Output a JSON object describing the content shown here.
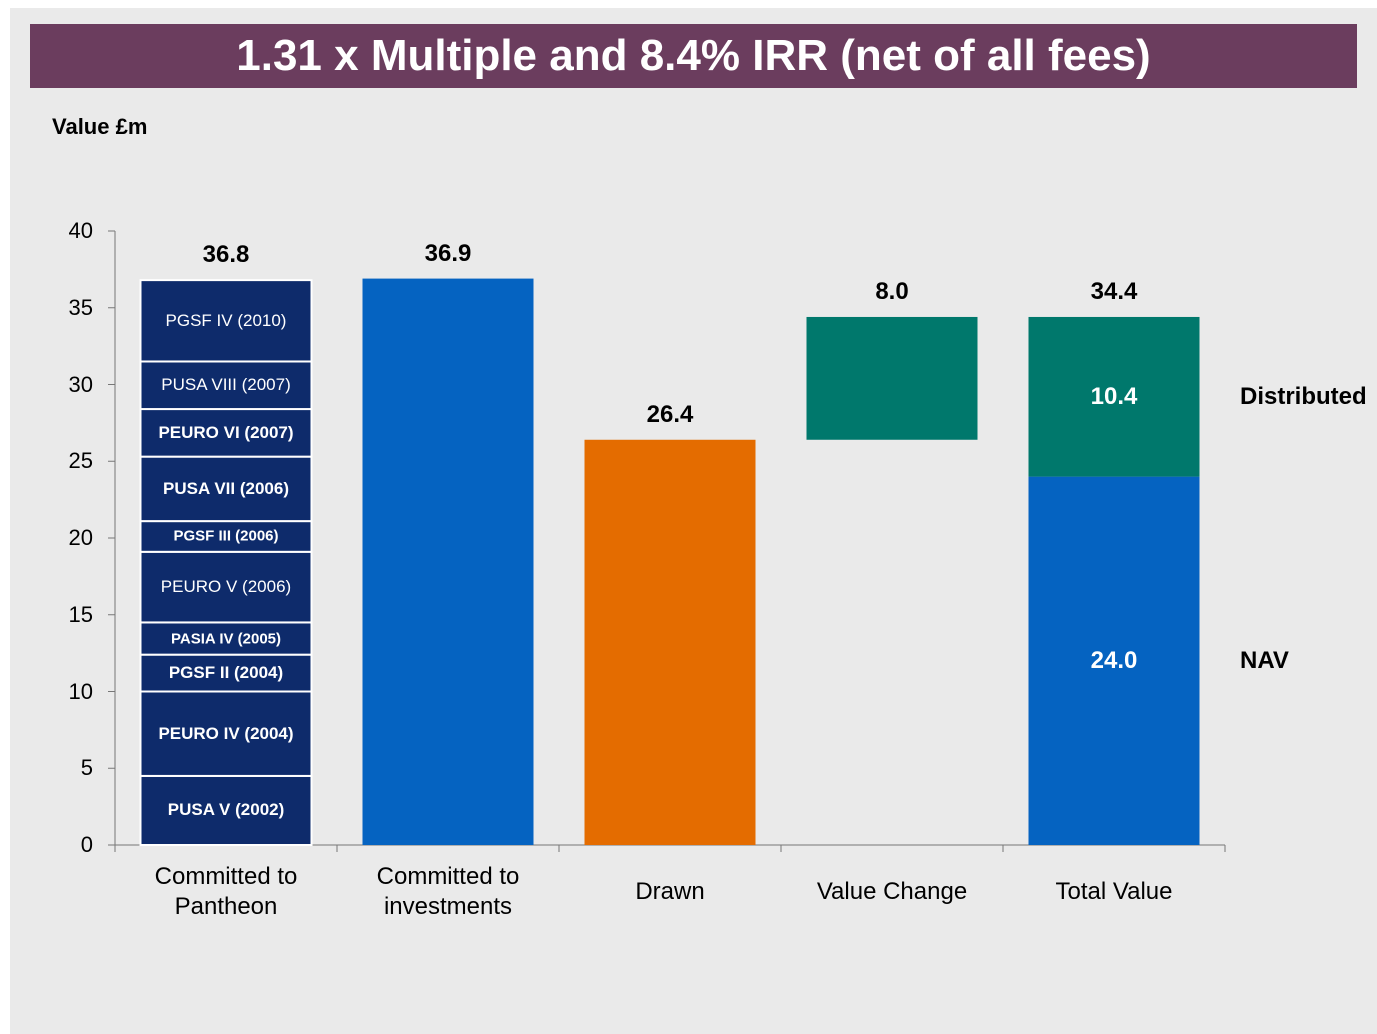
{
  "chart_data": {
    "type": "waterfall",
    "title": "1.31 x Multiple and 8.4% IRR (net of all fees)",
    "y_label": "Value £m",
    "ylim": [
      0,
      40
    ],
    "yticks": [
      0,
      5,
      10,
      15,
      20,
      25,
      30,
      35,
      40
    ],
    "categories": [
      "Committed to Pantheon",
      "Committed to investments",
      "Drawn",
      "Value Change",
      "Total Value"
    ],
    "bars": [
      {
        "names": "inside",
        "total": 36.8,
        "segments": [
          {
            "name": "PUSA V (2002)",
            "value": 4.5,
            "color": "#0e2b6b",
            "bold": true
          },
          {
            "name": "PEURO IV (2004)",
            "value": 5.5,
            "color": "#0e2b6b",
            "bold": true
          },
          {
            "name": "PGSF II (2004)",
            "value": 2.4,
            "color": "#0e2b6b",
            "bold": true
          },
          {
            "name": "PASIA IV (2005)",
            "value": 2.1,
            "color": "#0e2b6b",
            "bold": true
          },
          {
            "name": "PEURO V (2006)",
            "value": 4.6,
            "color": "#0e2b6b",
            "bold": false
          },
          {
            "name": "PGSF III (2006)",
            "value": 2.0,
            "color": "#0e2b6b",
            "bold": true
          },
          {
            "name": "PUSA VII (2006)",
            "value": 4.2,
            "color": "#0e2b6b",
            "bold": true
          },
          {
            "name": "PEURO VI (2007)",
            "value": 3.1,
            "color": "#0e2b6b",
            "bold": true
          },
          {
            "name": "PUSA VIII (2007)",
            "value": 3.1,
            "color": "#0e2b6b",
            "bold": false
          },
          {
            "name": "PGSF IV (2010)",
            "value": 5.3,
            "color": "#0e2b6b",
            "bold": false
          }
        ]
      },
      {
        "value": 36.9,
        "color": "#0563c1"
      },
      {
        "value": 26.4,
        "color": "#e46c00"
      },
      {
        "value": 8,
        "value_label": "8.0",
        "color": "#00786c",
        "kind": "increase"
      },
      {
        "names": "right",
        "total": 34.4,
        "segments": [
          {
            "name": "NAV",
            "value": 24,
            "value_label": "24.0",
            "color": "#0563c1"
          },
          {
            "name": "Distributed",
            "value": 10.4,
            "color": "#00786c"
          }
        ]
      }
    ]
  }
}
